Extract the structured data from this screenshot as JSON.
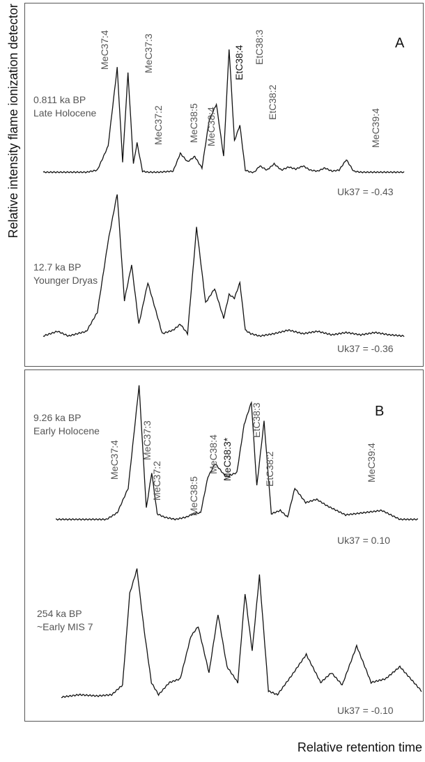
{
  "figure": {
    "ylabel": "Relative intensity flame ionization detector",
    "xlabel": "Relative retention time"
  },
  "chart_data": [
    {
      "panel": "A",
      "type": "line",
      "traces": [
        {
          "label_lines": [
            "0.811 ka BP",
            "Late Holocene"
          ],
          "uk37": "Uk37 = -0.43",
          "x": [
            0.0,
            0.12,
            0.15,
            0.18,
            0.205,
            0.22,
            0.235,
            0.25,
            0.26,
            0.275,
            0.29,
            0.32,
            0.36,
            0.38,
            0.4,
            0.42,
            0.44,
            0.46,
            0.48,
            0.5,
            0.515,
            0.53,
            0.545,
            0.56,
            0.575,
            0.585,
            0.6,
            0.62,
            0.64,
            0.66,
            0.68,
            0.7,
            0.72,
            0.74,
            0.76,
            0.78,
            0.8,
            0.82,
            0.84,
            0.86,
            0.88,
            0.895,
            0.91,
            0.93,
            0.95,
            1.0
          ],
          "y": [
            0.0,
            0.0,
            0.02,
            0.25,
            1.0,
            0.1,
            0.95,
            0.08,
            0.28,
            0.01,
            0.0,
            0.0,
            0.01,
            0.18,
            0.1,
            0.15,
            0.04,
            0.5,
            0.65,
            0.15,
            1.18,
            0.3,
            0.45,
            0.02,
            0.0,
            0.0,
            0.06,
            0.02,
            0.08,
            0.02,
            0.05,
            0.03,
            0.06,
            0.02,
            0.01,
            0.04,
            0.01,
            0.02,
            0.12,
            0.01,
            0.0,
            0.0,
            0.0,
            0.0,
            0.0,
            0.0
          ]
        },
        {
          "label_lines": [
            "12.7 ka BP",
            "Younger Dryas"
          ],
          "uk37": "Uk37 = -0.36",
          "x": [
            0.0,
            0.04,
            0.07,
            0.12,
            0.15,
            0.18,
            0.205,
            0.225,
            0.245,
            0.265,
            0.29,
            0.33,
            0.36,
            0.38,
            0.4,
            0.425,
            0.45,
            0.475,
            0.5,
            0.515,
            0.53,
            0.545,
            0.56,
            0.575,
            0.6,
            0.64,
            0.68,
            0.72,
            0.76,
            0.8,
            0.84,
            0.88,
            0.92,
            0.96,
            1.0
          ],
          "y": [
            0.0,
            0.04,
            0.0,
            0.04,
            0.2,
            0.8,
            1.2,
            0.3,
            0.6,
            0.1,
            0.45,
            0.02,
            0.05,
            0.1,
            0.02,
            0.92,
            0.28,
            0.4,
            0.15,
            0.35,
            0.32,
            0.45,
            0.05,
            0.02,
            0.0,
            0.02,
            0.05,
            0.02,
            0.04,
            0.01,
            0.03,
            0.01,
            0.03,
            0.01,
            0.0
          ]
        }
      ],
      "peak_labels": [
        "MeC37:4",
        "MeC37:3",
        "MeC37:2",
        "MeC38:5",
        "MeC38:4",
        "EtC38:4",
        "EtC38:3",
        "EtC38:2",
        "MeC39:4"
      ],
      "grid": false
    },
    {
      "panel": "B",
      "type": "line",
      "traces": [
        {
          "label_lines": [
            "9.26 ka BP",
            "Early Holocene"
          ],
          "uk37": "Uk37 =  0.10",
          "x": [
            0.0,
            0.14,
            0.17,
            0.2,
            0.23,
            0.25,
            0.265,
            0.28,
            0.3,
            0.33,
            0.36,
            0.38,
            0.4,
            0.42,
            0.44,
            0.47,
            0.5,
            0.52,
            0.54,
            0.555,
            0.575,
            0.595,
            0.62,
            0.64,
            0.66,
            0.69,
            0.72,
            0.75,
            0.8,
            0.85,
            0.9,
            0.95,
            1.0
          ],
          "y": [
            0.0,
            0.0,
            0.06,
            0.28,
            1.2,
            0.1,
            0.42,
            0.05,
            0.02,
            0.0,
            0.02,
            0.05,
            0.06,
            0.38,
            0.5,
            0.38,
            0.42,
            0.85,
            1.05,
            0.3,
            0.88,
            0.05,
            0.08,
            0.02,
            0.28,
            0.15,
            0.18,
            0.12,
            0.04,
            0.06,
            0.08,
            0.0,
            0.0
          ]
        },
        {
          "label_lines": [
            "254 ka BP",
            "~Early MIS 7"
          ],
          "uk37": "Uk37 = -0.10",
          "x": [
            0.0,
            0.05,
            0.1,
            0.14,
            0.17,
            0.19,
            0.21,
            0.23,
            0.25,
            0.27,
            0.3,
            0.33,
            0.36,
            0.38,
            0.41,
            0.435,
            0.46,
            0.49,
            0.51,
            0.53,
            0.55,
            0.575,
            0.6,
            0.64,
            0.68,
            0.72,
            0.75,
            0.78,
            0.82,
            0.86,
            0.9,
            0.94,
            1.0
          ],
          "y": [
            0.0,
            0.02,
            0.01,
            0.02,
            0.1,
            0.85,
            1.05,
            0.55,
            0.12,
            0.02,
            0.12,
            0.15,
            0.5,
            0.58,
            0.2,
            0.68,
            0.25,
            0.12,
            0.85,
            0.38,
            1.0,
            0.05,
            0.02,
            0.18,
            0.35,
            0.12,
            0.2,
            0.1,
            0.42,
            0.12,
            0.15,
            0.25,
            0.05
          ]
        }
      ],
      "peak_labels": [
        "MeC37:4",
        "MeC37:3",
        "MeC37:2",
        "MeC38:5",
        "MeC38:4",
        "MeC38:3*",
        "EtC38:3",
        "EtC38:2",
        "MeC39:4"
      ],
      "grid": false
    }
  ]
}
